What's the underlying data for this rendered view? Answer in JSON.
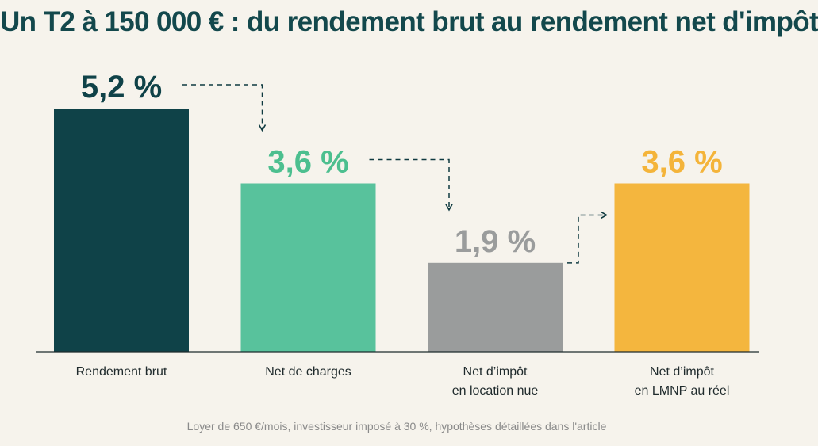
{
  "title": "Un T2 à 150 000 € : du rendement brut au rendement net d'impôt",
  "footnote": "Loyer de 650 €/mois, investisseur imposé à 30 %, hypothèses détaillées dans l'article",
  "chart_data": {
    "type": "bar",
    "title": "Un T2 à 150 000 € : du rendement brut au rendement net d'impôt",
    "xlabel": "",
    "ylabel": "",
    "ylim": [
      0,
      5.6
    ],
    "grid": false,
    "legend": "none",
    "categories": [
      [
        "Rendement brut"
      ],
      [
        "Net de charges"
      ],
      [
        "Net d’impôt",
        "en location nue"
      ],
      [
        "Net d’impôt",
        "en LMNP au réel"
      ]
    ],
    "values": [
      5.2,
      3.6,
      1.9,
      3.6
    ],
    "value_labels": [
      "5,2 %",
      "3,6 %",
      "1,9 %",
      "3,6 %"
    ],
    "colors": [
      "#0f4248",
      "#58c29c",
      "#9a9c9c",
      "#f4b63e"
    ],
    "label_colors": [
      "#0f4248",
      "#4cbf8f",
      "#9a9c9c",
      "#f4b43a"
    ],
    "arrows": [
      [
        0,
        1
      ],
      [
        1,
        2
      ],
      [
        2,
        3
      ]
    ]
  }
}
